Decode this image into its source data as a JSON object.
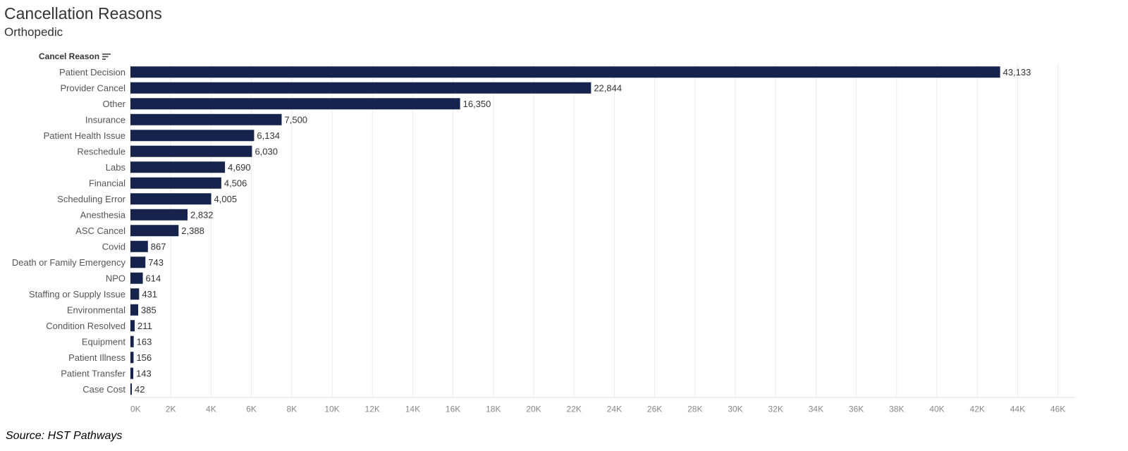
{
  "header": {
    "title": "Cancellation Reasons",
    "subtitle": "Orthopedic",
    "field_label": "Cancel Reason",
    "sort_icon": "sort-descending-icon"
  },
  "footer": {
    "source": "Source: HST Pathways"
  },
  "colors": {
    "bar": "#16244d",
    "grid": "#ebebeb"
  },
  "chart_data": {
    "type": "bar",
    "orientation": "horizontal",
    "title": "Cancellation Reasons",
    "subtitle": "Orthopedic",
    "ylabel": "Cancel Reason",
    "xlabel": "",
    "categories": [
      "Patient Decision",
      "Provider Cancel",
      "Other",
      "Insurance",
      "Patient Health Issue",
      "Reschedule",
      "Labs",
      "Financial",
      "Scheduling Error",
      "Anesthesia",
      "ASC Cancel",
      "Covid",
      "Death or Family Emergency",
      "NPO",
      "Staffing or Supply Issue",
      "Environmental",
      "Condition Resolved",
      "Equipment",
      "Patient Illness",
      "Patient Transfer",
      "Case Cost"
    ],
    "values": [
      43133,
      22844,
      16350,
      7500,
      6134,
      6030,
      4690,
      4506,
      4005,
      2832,
      2388,
      867,
      743,
      614,
      431,
      385,
      211,
      163,
      156,
      143,
      42
    ],
    "value_labels": [
      "43,133",
      "22,844",
      "16,350",
      "7,500",
      "6,134",
      "6,030",
      "4,690",
      "4,506",
      "4,005",
      "2,832",
      "2,388",
      "867",
      "743",
      "614",
      "431",
      "385",
      "211",
      "163",
      "156",
      "143",
      "42"
    ],
    "xlim": [
      0,
      46000
    ],
    "xticks": [
      0,
      2000,
      4000,
      6000,
      8000,
      10000,
      12000,
      14000,
      16000,
      18000,
      20000,
      22000,
      24000,
      26000,
      28000,
      30000,
      32000,
      34000,
      36000,
      38000,
      40000,
      42000,
      44000,
      46000
    ],
    "xtick_labels": [
      "0K",
      "2K",
      "4K",
      "6K",
      "8K",
      "10K",
      "12K",
      "14K",
      "16K",
      "18K",
      "20K",
      "22K",
      "24K",
      "26K",
      "28K",
      "30K",
      "32K",
      "34K",
      "36K",
      "38K",
      "40K",
      "42K",
      "44K",
      "46K"
    ],
    "grid": true,
    "legend": "none"
  }
}
